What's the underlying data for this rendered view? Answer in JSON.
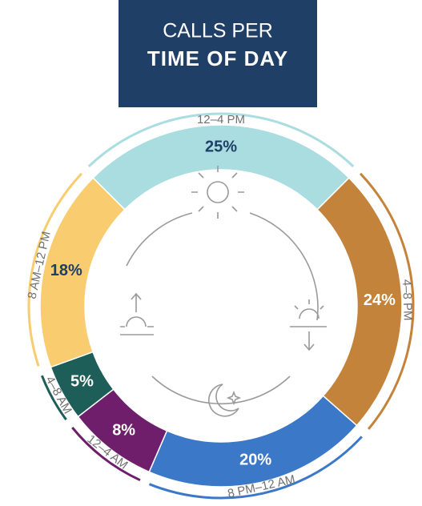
{
  "chart_data": {
    "type": "pie",
    "title": [
      "CALLS PER",
      "TIME OF DAY"
    ],
    "categories": [
      "12–4 PM",
      "4–8 PM",
      "8 PM–12 AM",
      "12–4 AM",
      "4–8 AM",
      "8 AM–12 PM"
    ],
    "values": [
      25,
      24,
      20,
      8,
      5,
      18
    ],
    "value_labels": [
      "25%",
      "24%",
      "20%",
      "8%",
      "5%",
      "18%"
    ],
    "colors": [
      "#a9dde0",
      "#c4833a",
      "#3b79c8",
      "#6e1e6b",
      "#1e5e59",
      "#f9cd6f"
    ]
  }
}
